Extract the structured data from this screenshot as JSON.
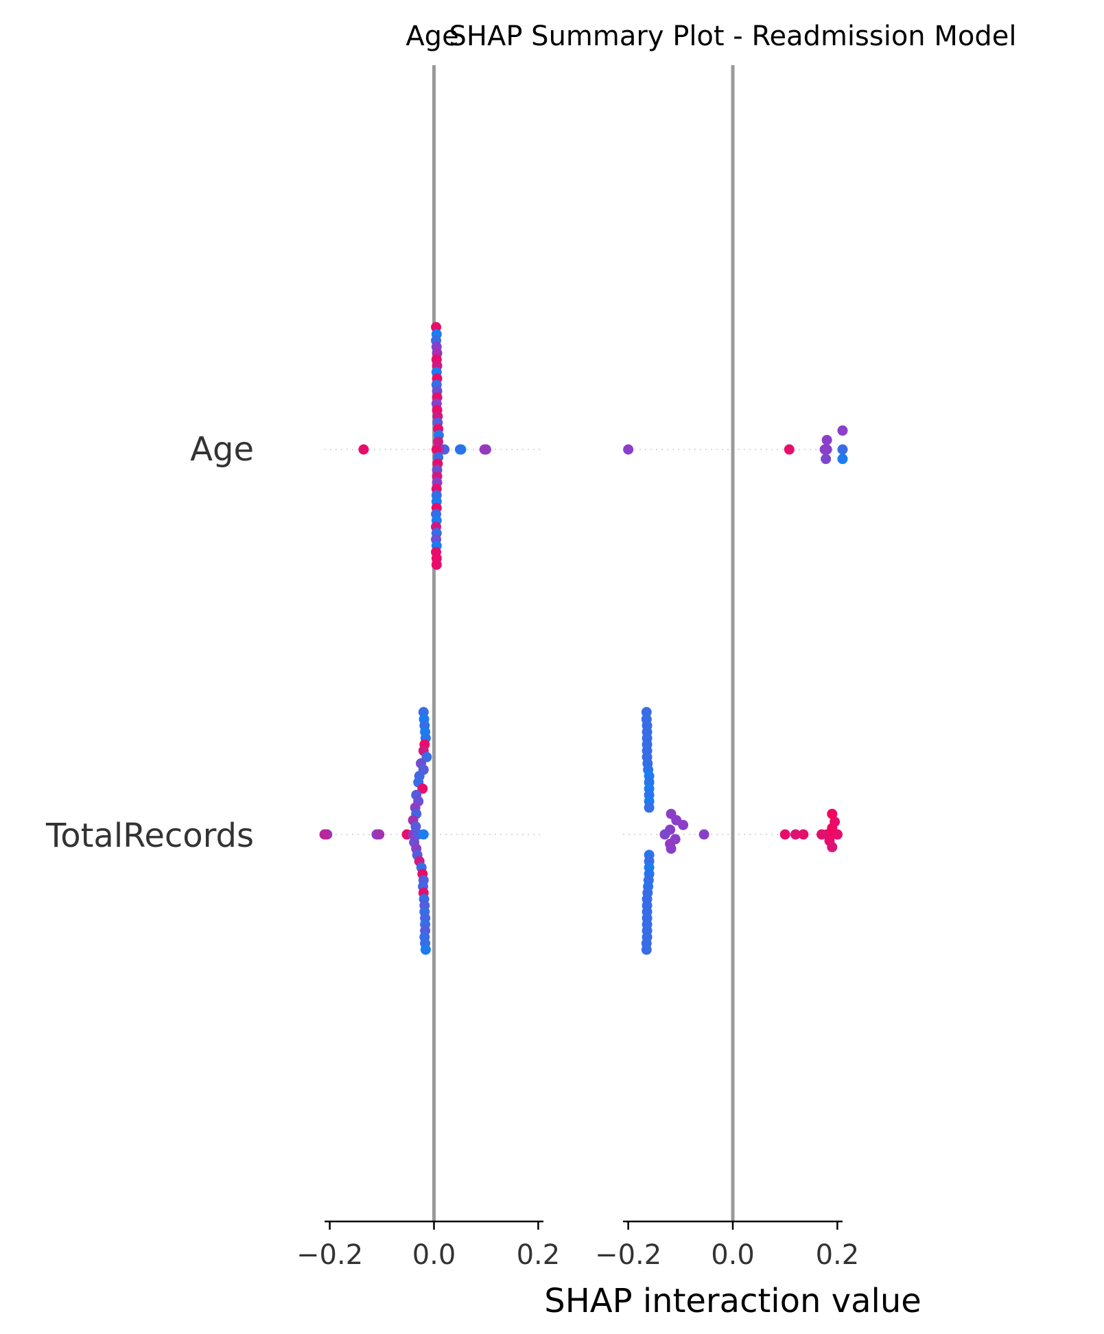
{
  "chart_data": {
    "type": "scatter",
    "title_left": "Age",
    "title_main": "SHAP Summary Plot - Readmission Model",
    "xlabel": "SHAP interaction value",
    "rows": [
      "Age",
      "TotalRecords"
    ],
    "xticks": [
      "−0.2",
      "0.0",
      "0.2"
    ],
    "xlim": [
      -0.21,
      0.21
    ],
    "colors": {
      "low": "#008bfb",
      "mid": "#8a3fc9",
      "high": "#ff0052",
      "zero_line": "#999999",
      "axis": "#000000",
      "row_line": "#cccccc"
    },
    "panels": [
      {
        "name": "Age",
        "series": [
          {
            "row": "Age",
            "points": [
              {
                "x": -0.135,
                "c": 0.9
              },
              {
                "x": 0.052,
                "c": 0.1
              },
              {
                "x": 0.1,
                "c": 0.5
              },
              {
                "x": 0.097,
                "c": 0.55
              },
              {
                "x": 0.05,
                "c": 0.15
              },
              {
                "x": 0.02,
                "c": 0.3
              },
              {
                "x": 0.015,
                "c": 0.2
              },
              {
                "x": 0.01,
                "c": 0.8
              },
              {
                "x": 0.012,
                "c": 0.4
              },
              {
                "x": 0.008,
                "c": 0.6
              },
              {
                "x": 0.006,
                "c": 0.1
              },
              {
                "x": 0.005,
                "c": 0.9
              }
            ],
            "spread": [
              {
                "y": -155,
                "x": 0.004,
                "c": 0.9
              },
              {
                "y": -146,
                "x": 0.005,
                "c": 0.1
              },
              {
                "y": -138,
                "x": 0.004,
                "c": 0.2
              },
              {
                "y": -130,
                "x": 0.005,
                "c": 0.5
              },
              {
                "y": -122,
                "x": 0.006,
                "c": 0.6
              },
              {
                "y": -114,
                "x": 0.005,
                "c": 0.9
              },
              {
                "y": -106,
                "x": 0.006,
                "c": 0.8
              },
              {
                "y": -98,
                "x": 0.005,
                "c": 0.1
              },
              {
                "y": -90,
                "x": 0.006,
                "c": 0.9
              },
              {
                "y": -82,
                "x": 0.005,
                "c": 0.2
              },
              {
                "y": -74,
                "x": 0.006,
                "c": 0.4
              },
              {
                "y": -66,
                "x": 0.006,
                "c": 0.9
              },
              {
                "y": -58,
                "x": 0.005,
                "c": 0.5
              },
              {
                "y": -50,
                "x": 0.006,
                "c": 0.9
              },
              {
                "y": -42,
                "x": 0.007,
                "c": 0.8
              },
              {
                "y": -34,
                "x": 0.007,
                "c": 0.3
              },
              {
                "y": -26,
                "x": 0.008,
                "c": 0.9
              },
              {
                "y": -18,
                "x": 0.009,
                "c": 0.1
              },
              {
                "y": -10,
                "x": 0.008,
                "c": 0.8
              },
              {
                "y": 10,
                "x": 0.008,
                "c": 0.2
              },
              {
                "y": 18,
                "x": 0.007,
                "c": 0.9
              },
              {
                "y": 26,
                "x": 0.006,
                "c": 0.4
              },
              {
                "y": 34,
                "x": 0.006,
                "c": 0.8
              },
              {
                "y": 42,
                "x": 0.006,
                "c": 0.5
              },
              {
                "y": 50,
                "x": 0.005,
                "c": 0.9
              },
              {
                "y": 58,
                "x": 0.005,
                "c": 0.2
              },
              {
                "y": 66,
                "x": 0.005,
                "c": 0.1
              },
              {
                "y": 74,
                "x": 0.005,
                "c": 0.9
              },
              {
                "y": 82,
                "x": 0.004,
                "c": 0.2
              },
              {
                "y": 90,
                "x": 0.005,
                "c": 0.1
              },
              {
                "y": 98,
                "x": 0.004,
                "c": 0.8
              },
              {
                "y": 106,
                "x": 0.005,
                "c": 0.2
              },
              {
                "y": 114,
                "x": 0.004,
                "c": 0.4
              },
              {
                "y": 122,
                "x": 0.005,
                "c": 0.1
              },
              {
                "y": 130,
                "x": 0.004,
                "c": 0.9
              },
              {
                "y": 138,
                "x": 0.005,
                "c": 0.9
              },
              {
                "y": 146,
                "x": 0.005,
                "c": 0.9
              }
            ]
          },
          {
            "row": "TotalRecords",
            "points": [
              {
                "x": -0.205,
                "c": 0.55
              },
              {
                "x": -0.21,
                "c": 0.7
              },
              {
                "x": -0.11,
                "c": 0.5
              },
              {
                "x": -0.105,
                "c": 0.6
              },
              {
                "x": -0.052,
                "c": 0.9
              },
              {
                "x": -0.04,
                "c": 0.5
              },
              {
                "x": -0.03,
                "c": 0.3
              },
              {
                "x": -0.02,
                "c": 0.1
              }
            ],
            "spread": [
              {
                "y": -155,
                "x": -0.02,
                "c": 0.2
              },
              {
                "y": -146,
                "x": -0.019,
                "c": 0.1
              },
              {
                "y": -138,
                "x": -0.018,
                "c": 0.2
              },
              {
                "y": -130,
                "x": -0.017,
                "c": 0.1
              },
              {
                "y": -122,
                "x": -0.016,
                "c": 0.15
              },
              {
                "y": -114,
                "x": -0.018,
                "c": 0.9
              },
              {
                "y": -106,
                "x": -0.02,
                "c": 0.8
              },
              {
                "y": -98,
                "x": -0.014,
                "c": 0.2
              },
              {
                "y": -90,
                "x": -0.025,
                "c": 0.4
              },
              {
                "y": -82,
                "x": -0.02,
                "c": 0.3
              },
              {
                "y": -74,
                "x": -0.028,
                "c": 0.25
              },
              {
                "y": -66,
                "x": -0.03,
                "c": 0.2
              },
              {
                "y": -58,
                "x": -0.022,
                "c": 0.9
              },
              {
                "y": -50,
                "x": -0.034,
                "c": 0.3
              },
              {
                "y": -42,
                "x": -0.03,
                "c": 0.4
              },
              {
                "y": -34,
                "x": -0.036,
                "c": 0.5
              },
              {
                "y": -26,
                "x": -0.034,
                "c": 0.25
              },
              {
                "y": -18,
                "x": -0.04,
                "c": 0.6
              },
              {
                "y": -10,
                "x": -0.035,
                "c": 0.3
              },
              {
                "y": 10,
                "x": -0.038,
                "c": 0.4
              },
              {
                "y": 18,
                "x": -0.034,
                "c": 0.5
              },
              {
                "y": 26,
                "x": -0.032,
                "c": 0.3
              },
              {
                "y": 34,
                "x": -0.028,
                "c": 0.8
              },
              {
                "y": 42,
                "x": -0.024,
                "c": 0.2
              },
              {
                "y": 50,
                "x": -0.022,
                "c": 0.9
              },
              {
                "y": 58,
                "x": -0.02,
                "c": 0.3
              },
              {
                "y": 66,
                "x": -0.021,
                "c": 0.25
              },
              {
                "y": 74,
                "x": -0.02,
                "c": 0.9
              },
              {
                "y": 82,
                "x": -0.019,
                "c": 0.2
              },
              {
                "y": 90,
                "x": -0.018,
                "c": 0.3
              },
              {
                "y": 98,
                "x": -0.018,
                "c": 0.2
              },
              {
                "y": 106,
                "x": -0.017,
                "c": 0.25
              },
              {
                "y": 114,
                "x": -0.017,
                "c": 0.2
              },
              {
                "y": 122,
                "x": -0.017,
                "c": 0.3
              },
              {
                "y": 130,
                "x": -0.018,
                "c": 0.2
              },
              {
                "y": 138,
                "x": -0.017,
                "c": 0.2
              },
              {
                "y": 146,
                "x": -0.016,
                "c": 0.1
              }
            ]
          }
        ]
      },
      {
        "name": "TotalRecords",
        "series": [
          {
            "row": "Age",
            "points": [
              {
                "x": -0.2,
                "c": 0.5
              },
              {
                "x": 0.108,
                "c": 0.9
              },
              {
                "x": 0.176,
                "c": 0.5
              },
              {
                "x": 0.18,
                "c": 0.5
              },
              {
                "x": 0.21,
                "c": 0.2
              }
            ],
            "spread": [
              {
                "y": -12,
                "x": 0.18,
                "c": 0.5
              },
              {
                "y": 12,
                "x": 0.178,
                "c": 0.45
              },
              {
                "y": -24,
                "x": 0.21,
                "c": 0.5
              },
              {
                "y": 12,
                "x": 0.21,
                "c": 0.1
              }
            ]
          },
          {
            "row": "TotalRecords",
            "points": [
              {
                "x": -0.055,
                "c": 0.5
              },
              {
                "x": 0.1,
                "c": 0.9
              },
              {
                "x": 0.12,
                "c": 0.85
              },
              {
                "x": 0.135,
                "c": 0.9
              },
              {
                "x": 0.17,
                "c": 0.9
              },
              {
                "x": 0.18,
                "c": 0.85
              },
              {
                "x": 0.19,
                "c": 0.95
              },
              {
                "x": 0.2,
                "c": 0.9
              }
            ],
            "spread": [
              {
                "y": -155,
                "x": -0.165,
                "c": 0.2
              },
              {
                "y": -146,
                "x": -0.165,
                "c": 0.2
              },
              {
                "y": -138,
                "x": -0.164,
                "c": 0.2
              },
              {
                "y": -130,
                "x": -0.164,
                "c": 0.2
              },
              {
                "y": -122,
                "x": -0.164,
                "c": 0.2
              },
              {
                "y": -114,
                "x": -0.164,
                "c": 0.2
              },
              {
                "y": -106,
                "x": -0.164,
                "c": 0.2
              },
              {
                "y": -98,
                "x": -0.164,
                "c": 0.2
              },
              {
                "y": -90,
                "x": -0.163,
                "c": 0.2
              },
              {
                "y": -82,
                "x": -0.162,
                "c": 0.15
              },
              {
                "y": -74,
                "x": -0.16,
                "c": 0.1
              },
              {
                "y": -66,
                "x": -0.16,
                "c": 0.15
              },
              {
                "y": -58,
                "x": -0.16,
                "c": 0.1
              },
              {
                "y": -50,
                "x": -0.16,
                "c": 0.15
              },
              {
                "y": -42,
                "x": -0.16,
                "c": 0.1
              },
              {
                "y": -34,
                "x": -0.16,
                "c": 0.2
              },
              {
                "y": -26,
                "x": -0.118,
                "c": 0.5
              },
              {
                "y": -18,
                "x": -0.108,
                "c": 0.5
              },
              {
                "y": -12,
                "x": -0.095,
                "c": 0.5
              },
              {
                "y": -6,
                "x": -0.12,
                "c": 0.5
              },
              {
                "y": 0,
                "x": -0.13,
                "c": 0.45
              },
              {
                "y": 6,
                "x": -0.11,
                "c": 0.5
              },
              {
                "y": 12,
                "x": -0.12,
                "c": 0.55
              },
              {
                "y": 18,
                "x": -0.118,
                "c": 0.5
              },
              {
                "y": -8,
                "x": 0.19,
                "c": 0.95
              },
              {
                "y": 8,
                "x": 0.185,
                "c": 0.9
              },
              {
                "y": 16,
                "x": 0.19,
                "c": 0.85
              },
              {
                "y": -16,
                "x": 0.195,
                "c": 0.9
              },
              {
                "y": -26,
                "x": 0.19,
                "c": 0.95
              },
              {
                "y": 0,
                "x": 0.2,
                "c": 0.9
              },
              {
                "y": 26,
                "x": -0.16,
                "c": 0.15
              },
              {
                "y": 34,
                "x": -0.16,
                "c": 0.2
              },
              {
                "y": 42,
                "x": -0.16,
                "c": 0.1
              },
              {
                "y": 50,
                "x": -0.16,
                "c": 0.15
              },
              {
                "y": 58,
                "x": -0.161,
                "c": 0.2
              },
              {
                "y": 66,
                "x": -0.162,
                "c": 0.15
              },
              {
                "y": 74,
                "x": -0.163,
                "c": 0.2
              },
              {
                "y": 82,
                "x": -0.164,
                "c": 0.2
              },
              {
                "y": 90,
                "x": -0.164,
                "c": 0.2
              },
              {
                "y": 98,
                "x": -0.164,
                "c": 0.2
              },
              {
                "y": 106,
                "x": -0.164,
                "c": 0.2
              },
              {
                "y": 114,
                "x": -0.164,
                "c": 0.2
              },
              {
                "y": 122,
                "x": -0.164,
                "c": 0.2
              },
              {
                "y": 130,
                "x": -0.164,
                "c": 0.2
              },
              {
                "y": 138,
                "x": -0.165,
                "c": 0.2
              },
              {
                "y": 146,
                "x": -0.165,
                "c": 0.2
              }
            ]
          }
        ]
      }
    ]
  }
}
